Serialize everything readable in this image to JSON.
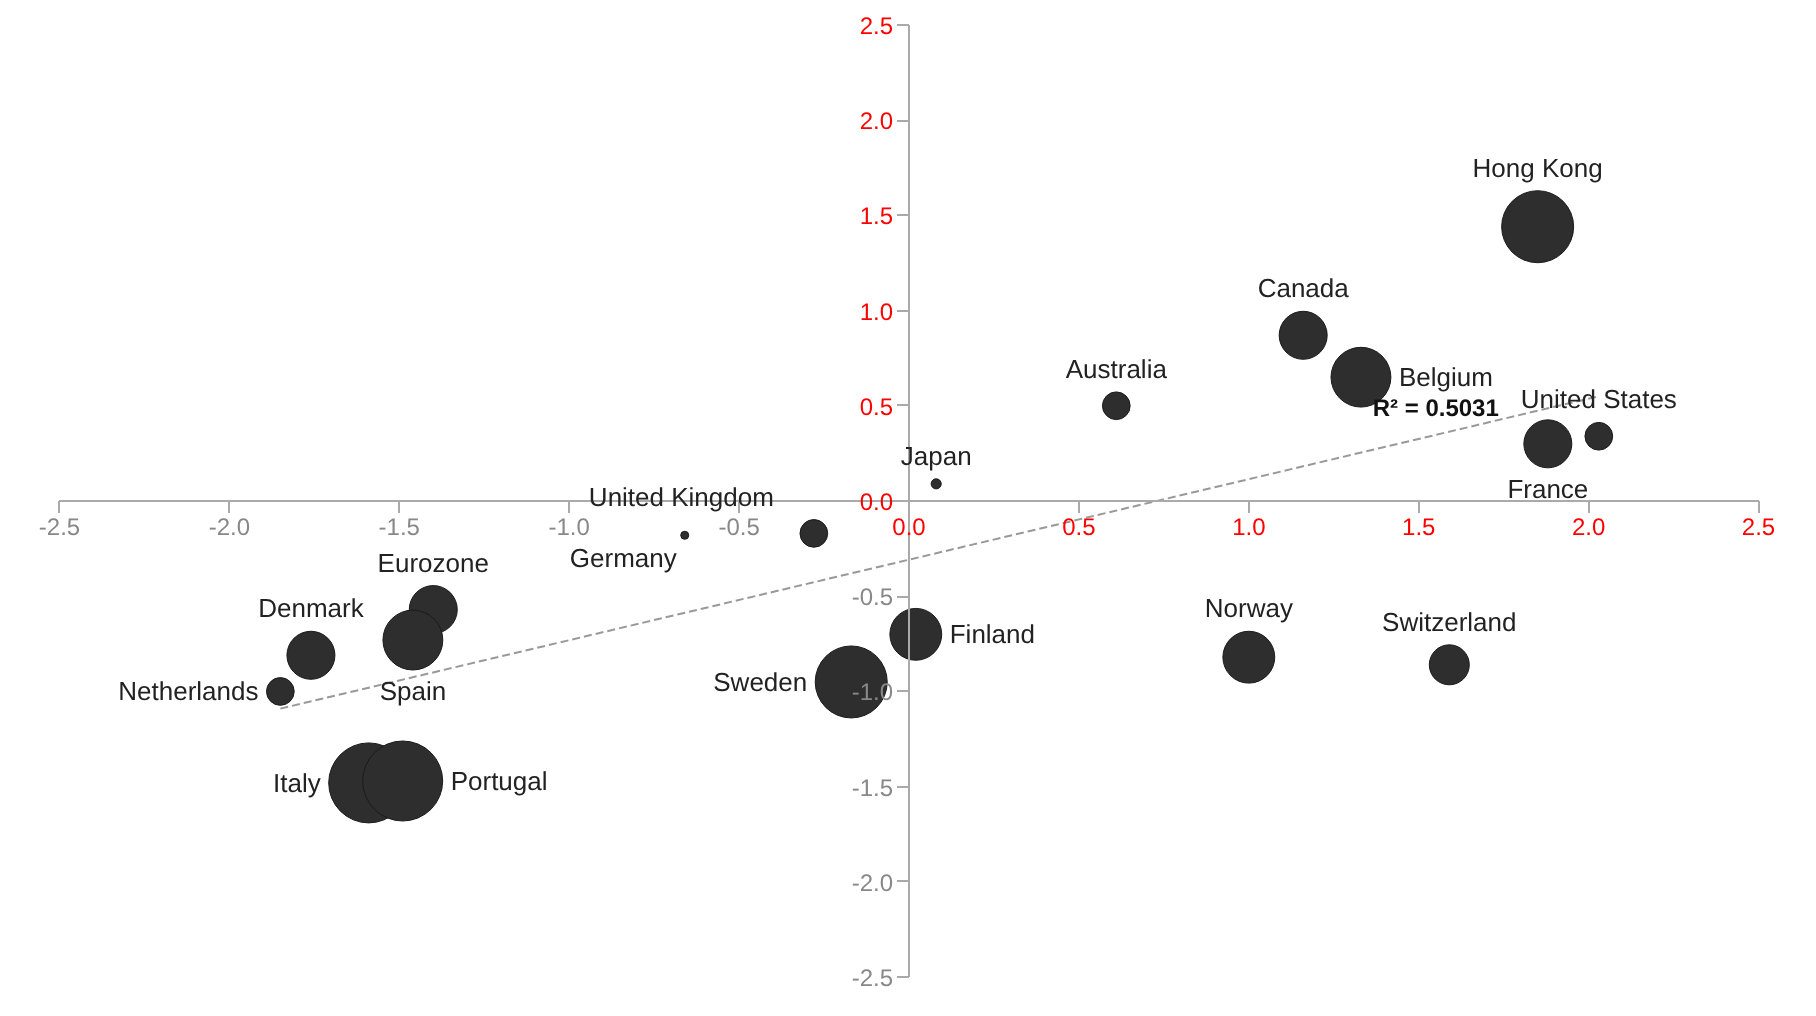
{
  "chart_data": {
    "type": "bubble",
    "xlim": [
      -2.5,
      2.5
    ],
    "ylim": [
      -2.5,
      2.5
    ],
    "xticks": [
      -2.5,
      {
        "value": -2,
        "label": "-2.0"
      },
      -1.5,
      {
        "value": -1,
        "label": "-1.0"
      },
      -0.5,
      {
        "value": 0,
        "label": "0.0"
      },
      0.5,
      {
        "value": 1,
        "label": "1.0"
      },
      1.5,
      {
        "value": 2,
        "label": "2.0"
      },
      2.5
    ],
    "yticks": [
      -2.5,
      {
        "value": -2,
        "label": "-2.0"
      },
      -1.5,
      {
        "value": -1,
        "label": "-1.0"
      },
      -0.5,
      {
        "value": 0,
        "label": "0.0"
      },
      0.5,
      {
        "value": 1,
        "label": "1.0"
      },
      1.5,
      {
        "value": 2,
        "label": "2.0"
      },
      2.5
    ],
    "grid": false,
    "marker": "circle",
    "series": [
      {
        "name": "Hong Kong",
        "color": "#2e2e2e",
        "x": [
          1.85
        ],
        "values": [
          1.44
        ],
        "sizes": [
          0.81
        ]
      },
      {
        "name": "Canada",
        "color": "#2e2e2e",
        "x": [
          1.16
        ],
        "values": [
          0.87
        ],
        "sizes": [
          0.36
        ]
      },
      {
        "name": "Belgium",
        "color": "#2e2e2e",
        "x": [
          1.33
        ],
        "values": [
          0.65
        ],
        "sizes": [
          0.56
        ]
      },
      {
        "name": "Australia",
        "color": "#2e2e2e",
        "x": [
          0.61
        ],
        "values": [
          0.5
        ],
        "sizes": [
          0.12
        ]
      },
      {
        "name": "France",
        "color": "#2e2e2e",
        "x": [
          1.88
        ],
        "values": [
          0.3
        ],
        "sizes": [
          0.36
        ]
      },
      {
        "name": "United States",
        "color": "#2e2e2e",
        "x": [
          2.03
        ],
        "values": [
          0.34
        ],
        "sizes": [
          0.12
        ]
      },
      {
        "name": "Japan",
        "color": "#2e2e2e",
        "x": [
          0.08
        ],
        "values": [
          0.09
        ],
        "sizes": [
          0.016
        ]
      },
      {
        "name": "United Kingdom",
        "color": "#2e2e2e",
        "x": [
          -0.28
        ],
        "values": [
          -0.17
        ],
        "sizes": [
          0.12
        ]
      },
      {
        "name": "Germany",
        "color": "#2e2e2e",
        "x": [
          -0.66
        ],
        "values": [
          -0.18
        ],
        "sizes": [
          0.01
        ]
      },
      {
        "name": "Eurozone",
        "color": "#2e2e2e",
        "x": [
          -1.4
        ],
        "values": [
          -0.57
        ],
        "sizes": [
          0.36
        ]
      },
      {
        "name": "Spain",
        "color": "#2e2e2e",
        "x": [
          -1.46
        ],
        "values": [
          -0.73
        ],
        "sizes": [
          0.56
        ]
      },
      {
        "name": "Denmark",
        "color": "#2e2e2e",
        "x": [
          -1.76
        ],
        "values": [
          -0.81
        ],
        "sizes": [
          0.36
        ]
      },
      {
        "name": "Netherlands",
        "color": "#2e2e2e",
        "x": [
          -1.85
        ],
        "values": [
          -1.0
        ],
        "sizes": [
          0.12
        ]
      },
      {
        "name": "Italy",
        "color": "#2e2e2e",
        "x": [
          -1.59
        ],
        "values": [
          -1.48
        ],
        "sizes": [
          1.0
        ]
      },
      {
        "name": "Portugal",
        "color": "#2e2e2e",
        "x": [
          -1.49
        ],
        "values": [
          -1.47
        ],
        "sizes": [
          1.0
        ]
      },
      {
        "name": "Sweden",
        "color": "#2e2e2e",
        "x": [
          -0.17
        ],
        "values": [
          -0.95
        ],
        "sizes": [
          0.81
        ]
      },
      {
        "name": "Finland",
        "color": "#2e2e2e",
        "x": [
          0.02
        ],
        "values": [
          -0.7
        ],
        "sizes": [
          0.42
        ]
      },
      {
        "name": "Norway",
        "color": "#2e2e2e",
        "x": [
          1.0
        ],
        "values": [
          -0.82
        ],
        "sizes": [
          0.42
        ]
      },
      {
        "name": "Switzerland",
        "color": "#2e2e2e",
        "x": [
          1.59
        ],
        "values": [
          -0.86
        ],
        "sizes": [
          0.25
        ]
      },
      {
        "type": "line",
        "color": "#999999",
        "line_style": "dashed",
        "marker": "none",
        "x": [
          -1.85,
          2.03
        ],
        "values": [
          -1.09,
          0.55
        ]
      }
    ],
    "annotations": [
      "R² = 0.5031"
    ]
  }
}
